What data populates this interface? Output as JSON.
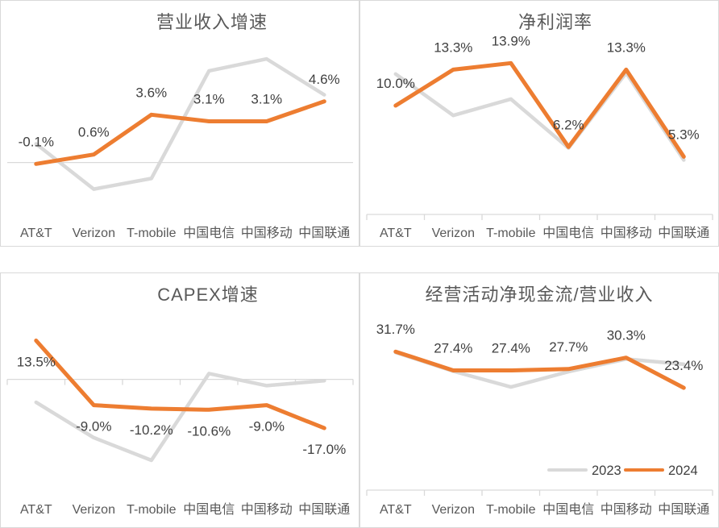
{
  "colors": {
    "series_2023": "#D9D9D9",
    "series_2024": "#ED7D31",
    "panel_border": "#D9D9D9",
    "axis_line": "#D9D9D9",
    "title_text": "#595959",
    "axis_text": "#595959",
    "label_text": "#404040"
  },
  "categories": [
    "AT&T",
    "Verizon",
    "T-mobile",
    "中国电信",
    "中国移动",
    "中国联通"
  ],
  "legend": {
    "position": "bottom-right-of-fourth-chart",
    "labels": [
      "2023",
      "2024"
    ]
  },
  "chart_data": [
    {
      "type": "line",
      "title": "营业收入增速",
      "categories": [
        "AT&T",
        "Verizon",
        "T-mobile",
        "中国电信",
        "中国移动",
        "中国联通"
      ],
      "ylim": [
        -3.3,
        9.2
      ],
      "grid": false,
      "axis_ticks": false,
      "label_position": "above",
      "series": [
        {
          "name": "2023",
          "values": [
            1.4,
            -2.0,
            -1.2,
            6.9,
            7.8,
            5.1
          ]
        },
        {
          "name": "2024",
          "values": [
            -0.1,
            0.6,
            3.6,
            3.1,
            3.1,
            4.6
          ],
          "labels": [
            "-0.1%",
            "0.6%",
            "3.6%",
            "3.1%",
            "3.1%",
            "4.6%"
          ]
        }
      ]
    },
    {
      "type": "line",
      "title": "净利润率",
      "categories": [
        "AT&T",
        "Verizon",
        "T-mobile",
        "中国电信",
        "中国移动",
        "中国联通"
      ],
      "ylim": [
        0,
        16
      ],
      "grid": false,
      "axis_ticks": true,
      "label_position": "above",
      "series": [
        {
          "name": "2023",
          "values": [
            12.9,
            9.1,
            10.6,
            6.1,
            13.0,
            5.0
          ]
        },
        {
          "name": "2024",
          "values": [
            10.0,
            13.3,
            13.9,
            6.2,
            13.3,
            5.3
          ],
          "labels": [
            "10.0%",
            "13.3%",
            "13.9%",
            "6.2%",
            "13.3%",
            "5.3%"
          ]
        }
      ]
    },
    {
      "type": "line",
      "title": "CAPEX增速",
      "categories": [
        "AT&T",
        "Verizon",
        "T-mobile",
        "中国电信",
        "中国移动",
        "中国联通"
      ],
      "ylim": [
        -31,
        17
      ],
      "grid": false,
      "axis_ticks": true,
      "label_position": "below",
      "series": [
        {
          "name": "2023",
          "values": [
            -8.0,
            -20.3,
            -28.2,
            2.0,
            -2.2,
            -0.5
          ]
        },
        {
          "name": "2024",
          "values": [
            13.5,
            -9.0,
            -10.2,
            -10.6,
            -9.0,
            -17.0
          ],
          "labels": [
            "13.5%",
            "-9.0%",
            "-10.2%",
            "-10.6%",
            "-9.0%",
            "-17.0%"
          ]
        }
      ]
    },
    {
      "type": "line",
      "title": "经营活动净现金流/营业收入",
      "categories": [
        "AT&T",
        "Verizon",
        "T-mobile",
        "中国电信",
        "中国移动",
        "中国联通"
      ],
      "ylim": [
        0,
        38
      ],
      "grid": false,
      "axis_ticks": true,
      "label_position": "above",
      "show_legend": true,
      "series": [
        {
          "name": "2023",
          "values": [
            31.5,
            27.2,
            23.6,
            27.1,
            30.0,
            28.8
          ]
        },
        {
          "name": "2024",
          "values": [
            31.7,
            27.4,
            27.4,
            27.7,
            30.3,
            23.4
          ],
          "labels": [
            "31.7%",
            "27.4%",
            "27.4%",
            "27.7%",
            "30.3%",
            "23.4%"
          ]
        }
      ]
    }
  ]
}
